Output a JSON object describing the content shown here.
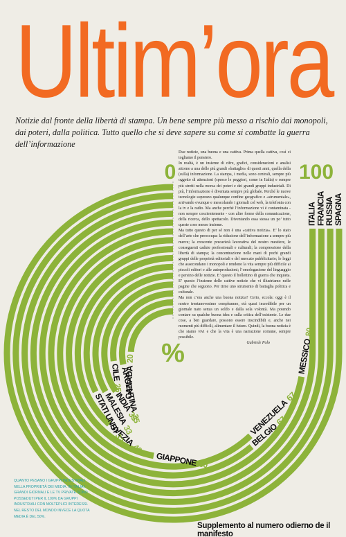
{
  "chart_data": {
    "type": "spiral-bar",
    "title": "Ultim’ora",
    "subtitle": "Notizie dal fronte della libertà di stampa. Un bene sempre più messo a rischio dai monopoli, dai poteri, dalla politica. Tutto quello che si deve sapere su come si combatte la guerra dell’informazione",
    "categories": [
      "SPAGNA",
      "RUSSIA",
      "FRANCIA",
      "ITALIA",
      "MESSICO",
      "BELGIO",
      "VENEZUELA",
      "GIAPPONE",
      "SVEZIA",
      "STATI UNITI",
      "MALESIA",
      "INDIA",
      "CILE",
      "ARGENTINA",
      "CANADA"
    ],
    "values": [
      100,
      100,
      100,
      100,
      80,
      67,
      67,
      50,
      40,
      33,
      33,
      33,
      25,
      25,
      20
    ],
    "value_labels": [
      null,
      null,
      null,
      null,
      "80",
      "67",
      "67",
      "50",
      "40",
      "33",
      "33",
      "33",
      "25",
      "25",
      "20"
    ],
    "color": "#8db33a",
    "xlim": [
      0,
      100
    ],
    "xticks": [
      0,
      100
    ],
    "unit_label": "%",
    "note": "QUANTO PESANO I GRUPPI INDUSTRIALI NELLA PROPRIETÀ DEI MEDIA. IN ITALIA I GRANDI GIORNALI E LE TV PRIVATE SONO POSSEDUTI PER IL 100% DA GRUPPI INDUSTRIALI CON MOLTEPLICI INTERESSI. NEL RESTO DEL MONDO INVECE LA QUOTA MEDIA È DEL 50%."
  },
  "article": {
    "paragraphs": [
      "Due notizie, una buona e una cattiva. Prima quella cattiva, così ci togliamo il pensiero.",
      "In realtà, è un insieme di cifre, grafici, considerazioni e analisi attorno a una delle più grandi «battaglie» di questi anni, quella della (sulla) informazione. La stampa, i media, sono centrali, sempre più oggetto di attenzioni (spesso le peggiori, come in Italia) e sempre più stretti nella morsa dei poteri e dei grandi gruppi industriali. Di più, l’informazione è diventata sempre più globale. Perché le nuove tecnologie superano qualunque confine geografico e «strumentale», arrivando ovunque e mescolando i giornali col web, la telefonia con la tv e la radio. Ma anche perché l’informazione vi è contaminata - non sempre coscientemente - con altre forme della comunicazione, della ricerca, dello spettacolo. Diventando essa stessa un po’ tutto queste cose messe insieme.",
      "Ma tutto questo di per sé non è una «cattiva notizia». E’ lo stato dell’arte che preoccupa: la riduzione dell’informazione a sempre più merce; la crescente precarietà lavorativa del nostro mestiere, le conseguenti cadute professionali e culturali; la compressione della libertà di stampa; la concentrazione nelle mani di pochi grandi gruppi delle proprietà editoriali e del mercato pubblicitario; le leggi che assecondano i monopoli e rendono la vita sempre più difficile ai piccoli editori e alle autoproduzioni; l’omologazione del linguaggio e persino delle notizie. E’ questo il bollettino di guerra che inquieta. E’ questo l’insieme delle cattive notizie che vi illustriamo nelle pagine che seguono. Per tirne uno strumento di battaglia politica e culturale.",
      "Ma non c’era anche una buona notizia? Certo, eccola: oggi è il nostro trentanovesimo compleanno, età quasi incredibile per un giornale nato senza un soldo e dalla sola volontà. Ma potendo contare su qualche buona idea e sulla critica dell’esistente. Le due cose, a ben guardare, possono essere inscindibili e, anche nei momenti più difficili, alimentare il futuro. Quindi, la buona notizia è che siamo vivi e che la vita è una narrazione comune, sempre possibile."
    ],
    "signature": "Gabriele Polo",
    "footer": "Supplemento al numero odierno de il manifesto"
  }
}
